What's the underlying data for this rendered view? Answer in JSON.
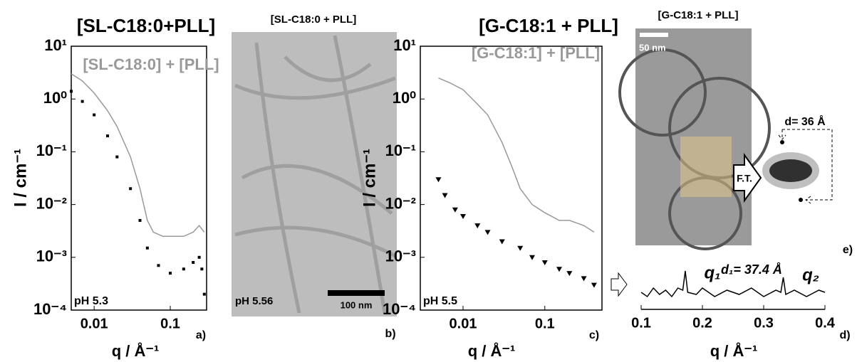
{
  "chart_data": [
    {
      "type": "line",
      "title": "[SL-C18:0+PLL]",
      "annotation": "pH 5.3",
      "label": "a)",
      "xlabel": "q / Å⁻¹",
      "ylabel": "I / cm⁻¹",
      "xlog": true,
      "ylog": true,
      "xlim": [
        0.005,
        0.3
      ],
      "ylim": [
        0.0001,
        10
      ],
      "xticks": [
        0.01,
        0.1
      ],
      "yticks": [
        {
          "value": 10,
          "label": "10¹"
        },
        {
          "value": 1,
          "label": "10⁰"
        },
        {
          "value": 0.1,
          "label": "10⁻¹"
        },
        {
          "value": 0.01,
          "label": "10⁻²"
        },
        {
          "value": 0.001,
          "label": "10⁻³"
        },
        {
          "value": 0.0001,
          "label": "10⁻⁴"
        }
      ],
      "series": [
        {
          "name": "[SL-C18:0] + [PLL]",
          "color": "#999999",
          "style": "line",
          "x": [
            0.005,
            0.007,
            0.01,
            0.015,
            0.02,
            0.03,
            0.04,
            0.05,
            0.06,
            0.08,
            0.1,
            0.15,
            0.2,
            0.24,
            0.28
          ],
          "values": [
            3,
            2.2,
            1.3,
            0.6,
            0.3,
            0.08,
            0.02,
            0.005,
            0.003,
            0.0025,
            0.0025,
            0.0025,
            0.003,
            0.004,
            0.003
          ]
        },
        {
          "color": "#000000",
          "style": "points",
          "x": [
            0.005,
            0.007,
            0.01,
            0.015,
            0.02,
            0.03,
            0.04,
            0.05,
            0.07,
            0.1,
            0.15,
            0.2,
            0.24,
            0.26,
            0.28
          ],
          "values": [
            1.4,
            0.9,
            0.5,
            0.2,
            0.08,
            0.02,
            0.005,
            0.0015,
            0.0007,
            0.0005,
            0.0006,
            0.0008,
            0.001,
            0.0006,
            0.0002
          ]
        }
      ]
    },
    {
      "type": "line",
      "title": "[G-C18:1 + PLL]",
      "annotation": "pH 5.5",
      "label": "c)",
      "xlabel": "q / Å⁻¹",
      "ylabel": "I / cm⁻¹",
      "xlog": true,
      "ylog": true,
      "xlim": [
        0.003,
        0.5
      ],
      "ylim": [
        0.0001,
        10
      ],
      "xticks": [
        0.01,
        0.1
      ],
      "yticks": [
        {
          "value": 10,
          "label": "10¹"
        },
        {
          "value": 1,
          "label": "10⁰"
        },
        {
          "value": 0.1,
          "label": "10⁻¹"
        },
        {
          "value": 0.01,
          "label": "10⁻²"
        },
        {
          "value": 0.001,
          "label": "10⁻³"
        },
        {
          "value": 0.0001,
          "label": "10⁻⁴"
        }
      ],
      "series": [
        {
          "name": "[G-C18:1] + [PLL]",
          "color": "#999999",
          "style": "line",
          "x": [
            0.005,
            0.007,
            0.01,
            0.015,
            0.02,
            0.03,
            0.04,
            0.05,
            0.07,
            0.1,
            0.15,
            0.2,
            0.3,
            0.4
          ],
          "values": [
            2.5,
            2,
            1.5,
            0.8,
            0.5,
            0.15,
            0.05,
            0.02,
            0.01,
            0.007,
            0.005,
            0.005,
            0.004,
            0.003
          ]
        },
        {
          "color": "#000000",
          "style": "triangles",
          "x": [
            0.005,
            0.006,
            0.008,
            0.01,
            0.015,
            0.02,
            0.03,
            0.05,
            0.07,
            0.1,
            0.15,
            0.2,
            0.3,
            0.4
          ],
          "values": [
            0.03,
            0.015,
            0.008,
            0.006,
            0.004,
            0.003,
            0.002,
            0.0015,
            0.001,
            0.0008,
            0.0006,
            0.0005,
            0.0004,
            0.0003
          ]
        }
      ]
    },
    {
      "type": "line",
      "label": "d)",
      "xlabel": "q / Å⁻¹",
      "xlim": [
        0.1,
        0.4
      ],
      "ylim": [
        0,
        1
      ],
      "xticks": [
        0.1,
        0.2,
        0.3,
        0.4
      ],
      "annotations": [
        "q₁",
        "d₁= 37.4 Å",
        "q₂"
      ],
      "series": [
        {
          "color": "#000000",
          "style": "line",
          "x": [
            0.1,
            0.11,
            0.12,
            0.13,
            0.14,
            0.15,
            0.16,
            0.168,
            0.172,
            0.176,
            0.19,
            0.2,
            0.22,
            0.24,
            0.26,
            0.28,
            0.3,
            0.32,
            0.328,
            0.332,
            0.336,
            0.35,
            0.37,
            0.39,
            0.4
          ],
          "values": [
            0.4,
            0.3,
            0.5,
            0.35,
            0.45,
            0.3,
            0.5,
            0.45,
            0.9,
            0.4,
            0.35,
            0.5,
            0.3,
            0.45,
            0.35,
            0.5,
            0.3,
            0.45,
            0.4,
            0.75,
            0.35,
            0.45,
            0.3,
            0.45,
            0.4
          ]
        }
      ]
    }
  ],
  "images": [
    {
      "title": "[SL-C18:0 + PLL]",
      "annotation": "pH 5.56",
      "scale_bar": "100 nm",
      "label": "b)"
    },
    {
      "title": "[G-C18:1 + PLL]",
      "scale_bar": "50 nm",
      "arrow_label": "F.T.",
      "fft_label": "d= 36 Å",
      "label": "e)"
    }
  ]
}
